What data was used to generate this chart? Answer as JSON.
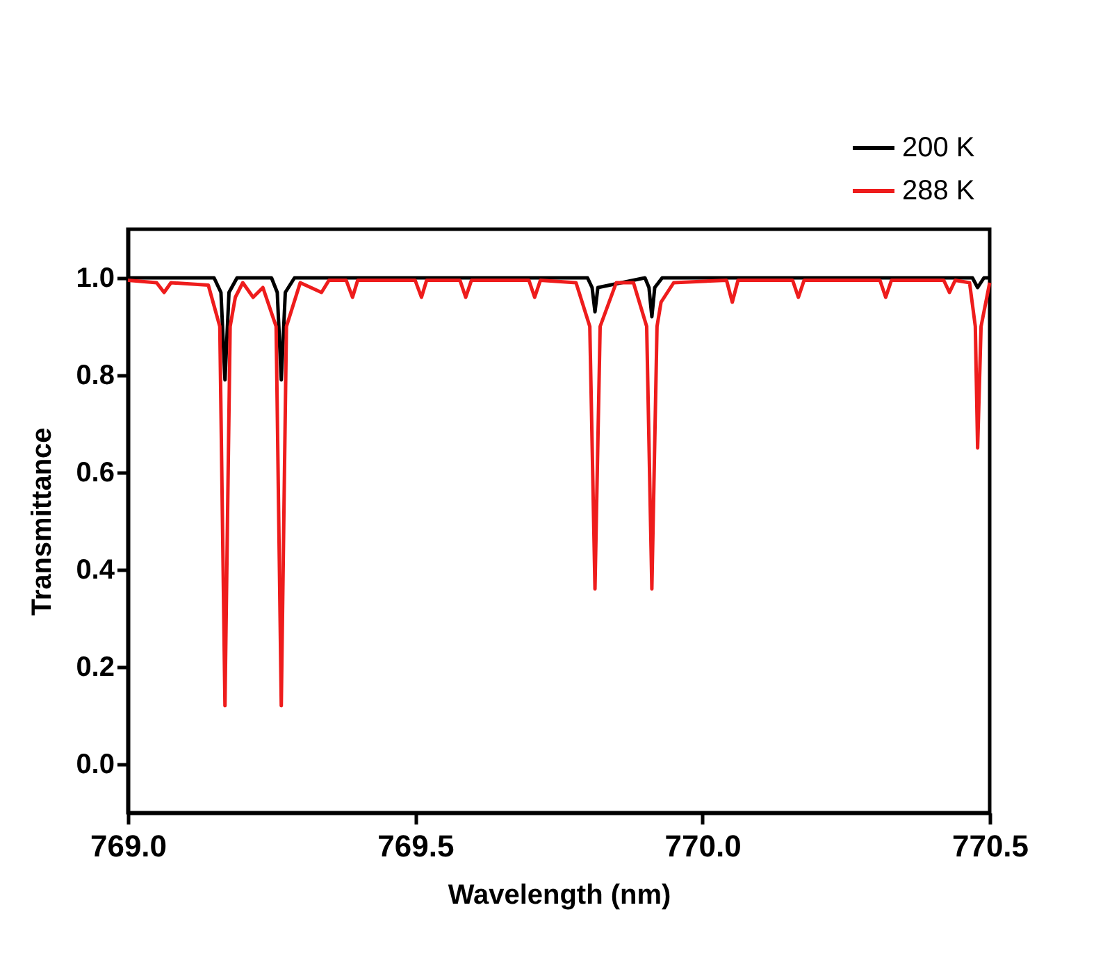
{
  "chart_data": {
    "type": "line",
    "xlabel": "Wavelength (nm)",
    "ylabel": "Transmittance",
    "xlim": [
      769.0,
      770.5
    ],
    "xticks": [
      {
        "value": 769.0,
        "label": "769.0"
      },
      {
        "value": 769.5,
        "label": "769.5"
      },
      {
        "value": 770.0,
        "label": "770.0"
      },
      {
        "value": 770.5,
        "label": "770.5"
      }
    ],
    "ylim": [
      -0.1,
      1.1
    ],
    "yticks": [
      {
        "value": 0,
        "label": "0.0"
      },
      0.2,
      0.4,
      0.6,
      0.8,
      {
        "value": 1,
        "label": "1.0"
      }
    ],
    "grid": false,
    "legend": "top right",
    "line_style": "solid",
    "marker": "none",
    "series": [
      {
        "name": "200 K",
        "color": "#000000",
        "x": [
          769.0,
          769.15,
          769.162,
          769.169,
          769.176,
          769.19,
          769.25,
          769.26,
          769.267,
          769.274,
          769.29,
          769.8,
          769.808,
          769.813,
          769.818,
          769.9,
          769.907,
          769.912,
          769.917,
          769.93,
          770.47,
          770.479,
          770.49,
          770.5
        ],
        "values": [
          1.0,
          1.0,
          0.97,
          0.79,
          0.97,
          1.0,
          1.0,
          0.97,
          0.79,
          0.97,
          1.0,
          1.0,
          0.98,
          0.93,
          0.98,
          1.0,
          0.98,
          0.92,
          0.98,
          1.0,
          1.0,
          0.98,
          1.0,
          1.0
        ]
      },
      {
        "name": "288 K",
        "color": "#ee1c1c",
        "x": [
          769.0,
          769.05,
          769.063,
          769.075,
          769.14,
          769.16,
          769.169,
          769.178,
          769.187,
          769.2,
          769.218,
          769.235,
          769.258,
          769.267,
          769.276,
          769.3,
          769.337,
          769.35,
          769.38,
          769.391,
          769.4,
          769.5,
          769.511,
          769.52,
          769.578,
          769.588,
          769.598,
          769.698,
          769.708,
          769.718,
          769.78,
          769.804,
          769.813,
          769.822,
          769.85,
          769.88,
          769.903,
          769.912,
          769.921,
          769.928,
          769.95,
          770.042,
          770.052,
          770.062,
          770.157,
          770.167,
          770.177,
          770.309,
          770.319,
          770.329,
          770.42,
          770.43,
          770.44,
          770.465,
          770.475,
          770.479,
          770.485,
          770.5
        ],
        "values": [
          0.995,
          0.99,
          0.97,
          0.99,
          0.985,
          0.9,
          0.12,
          0.9,
          0.96,
          0.99,
          0.96,
          0.98,
          0.9,
          0.12,
          0.9,
          0.99,
          0.97,
          0.995,
          0.995,
          0.96,
          0.995,
          0.995,
          0.96,
          0.995,
          0.995,
          0.96,
          0.995,
          0.995,
          0.96,
          0.995,
          0.99,
          0.9,
          0.36,
          0.9,
          0.99,
          0.99,
          0.9,
          0.36,
          0.9,
          0.95,
          0.99,
          0.995,
          0.95,
          0.995,
          0.995,
          0.96,
          0.995,
          0.995,
          0.96,
          0.995,
          0.995,
          0.97,
          0.995,
          0.99,
          0.9,
          0.65,
          0.9,
          0.99
        ]
      }
    ]
  }
}
